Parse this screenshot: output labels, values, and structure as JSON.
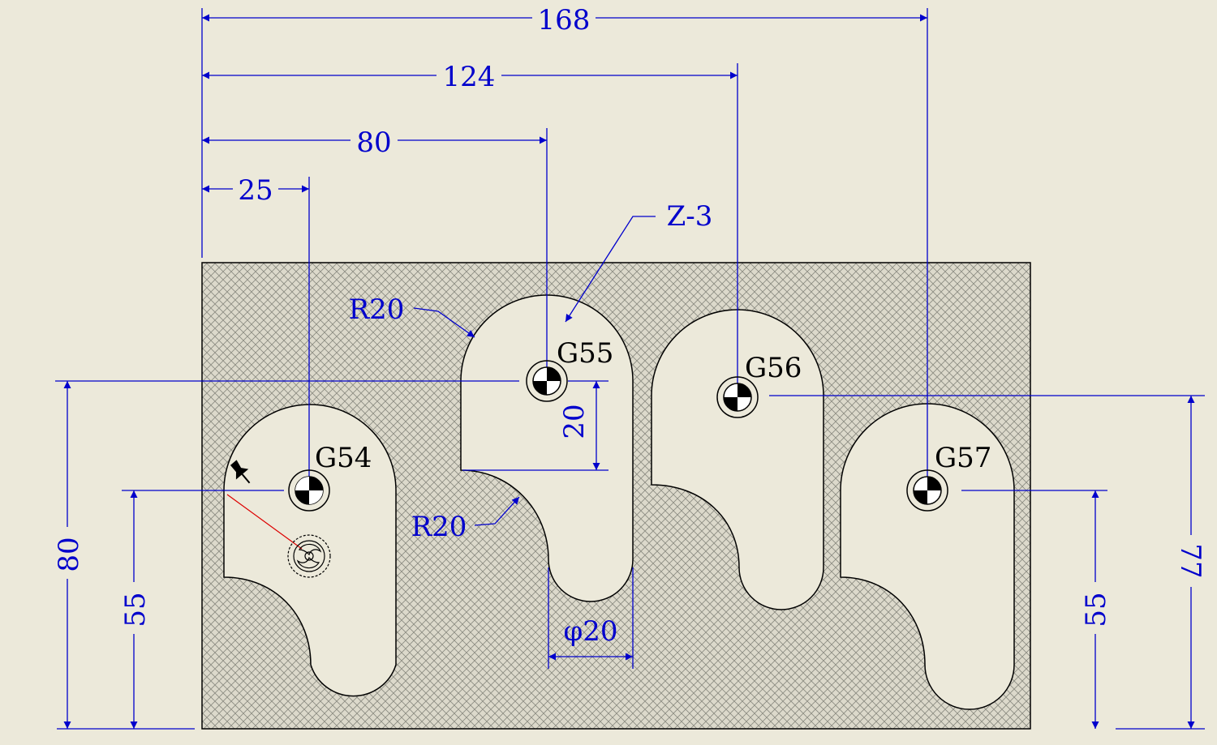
{
  "colors": {
    "background": "#ece9da",
    "dimension": "#0000cc",
    "outline": "#000000",
    "hatch": "#8a8a80",
    "pocket_fill": "#ece9da",
    "plate_fill": "#dcd9cb",
    "leader_red": "#dd0000"
  },
  "dimensions": {
    "width_168": "168",
    "width_124": "124",
    "width_80": "80",
    "width_25": "25",
    "height_80": "80",
    "height_55_left": "55",
    "height_55_right": "55",
    "height_77": "77",
    "depth_20": "20",
    "diameter": "φ20"
  },
  "labels": {
    "depth": "Z-3",
    "radius_top": "R20",
    "radius_bottom": "R20"
  },
  "work_offsets": [
    {
      "label": "G54"
    },
    {
      "label": "G55"
    },
    {
      "label": "G56"
    },
    {
      "label": "G57"
    }
  ],
  "icons": [
    "origin-marker-icon",
    "pushpin-icon",
    "probe-icon"
  ]
}
